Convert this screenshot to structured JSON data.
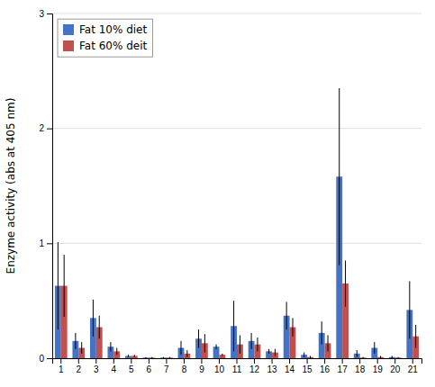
{
  "chart_data": {
    "type": "bar",
    "categories": [
      1,
      2,
      3,
      4,
      5,
      6,
      7,
      8,
      9,
      10,
      11,
      12,
      13,
      14,
      15,
      16,
      17,
      18,
      19,
      20,
      21
    ],
    "series": [
      {
        "name": "Fat 10% diet",
        "color": "#4472C4",
        "values": [
          0.63,
          0.15,
          0.35,
          0.1,
          0.02,
          0.005,
          0.005,
          0.09,
          0.17,
          0.1,
          0.28,
          0.15,
          0.06,
          0.37,
          0.03,
          0.22,
          1.58,
          0.04,
          0.09,
          0.01,
          0.42
        ],
        "errors": [
          0.38,
          0.07,
          0.16,
          0.04,
          0.01,
          0.005,
          0.005,
          0.06,
          0.08,
          0.02,
          0.22,
          0.07,
          0.02,
          0.12,
          0.02,
          0.1,
          0.77,
          0.03,
          0.05,
          0.01,
          0.25
        ]
      },
      {
        "name": "Fat 60% deit",
        "color": "#C0504D",
        "values": [
          0.63,
          0.09,
          0.27,
          0.06,
          0.02,
          0.005,
          0.005,
          0.04,
          0.13,
          0.03,
          0.12,
          0.12,
          0.05,
          0.27,
          0.01,
          0.13,
          0.65,
          0.005,
          0.01,
          0.005,
          0.19
        ],
        "errors": [
          0.27,
          0.05,
          0.1,
          0.03,
          0.01,
          0.005,
          0.005,
          0.03,
          0.08,
          0.01,
          0.08,
          0.06,
          0.03,
          0.08,
          0.01,
          0.07,
          0.2,
          0.005,
          0.01,
          0.005,
          0.1
        ]
      }
    ],
    "ylabel": "Enzyme activity (abs at 405 nm)",
    "ylim": [
      0,
      3
    ],
    "yticks": [
      0,
      1,
      2,
      3
    ],
    "grid": true,
    "legend": "upper left"
  }
}
